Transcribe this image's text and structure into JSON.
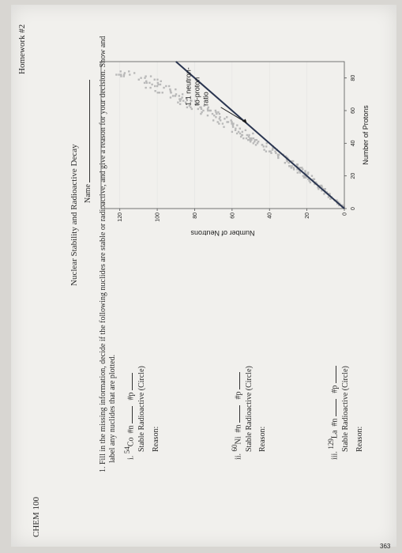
{
  "header": {
    "course": "CHEM 100",
    "homework": "Homework #2",
    "title": "Nuclear Stability and Radioactive Decay",
    "name_label": "Name"
  },
  "question": {
    "number": "1.",
    "text_line1": "Fill in the missing information, decide if the following nuclides are stable or radioactive,  and give a reason for your decision. Show and",
    "text_line2": "label any nuclides that are plotted."
  },
  "items": [
    {
      "roman": "i.",
      "mass": "54",
      "symbol": "Co",
      "n_label": "#n",
      "p_label": "#p",
      "choice": "Stable   Radioactive (Circle)",
      "reason": "Reason:"
    },
    {
      "roman": "ii.",
      "mass": "60",
      "symbol": "Ni",
      "n_label": "#n",
      "p_label": "#p",
      "choice": "Stable   Radioactive (Circle)",
      "reason": "Reason:"
    },
    {
      "roman": "iii.",
      "mass": "129",
      "symbol": "La",
      "n_label": "#n",
      "p_label": "#p",
      "choice": "Stable   Radioactive (Circle)",
      "reason": "Reason:"
    }
  ],
  "chart_data": {
    "type": "scatter",
    "xlabel": "Number of Protons",
    "ylabel": "Number of Neutrons",
    "xlim": [
      0,
      90
    ],
    "ylim": [
      0,
      130
    ],
    "x_ticks": [
      "0",
      "20",
      "40",
      "60",
      "80"
    ],
    "y_ticks": [
      "0",
      "20",
      "40",
      "60",
      "80",
      "100",
      "120"
    ],
    "annotation": "1:1 neutron-\nto-proton\nratio",
    "line": {
      "name": "1:1 neutron-to-proton ratio",
      "x": [
        0,
        90
      ],
      "y": [
        0,
        90
      ]
    },
    "band_note": "stable nuclides (band of stability)",
    "points_color": "#b9b9b9",
    "line_color": "#2a3550"
  },
  "footer": {
    "page_number": "363"
  }
}
